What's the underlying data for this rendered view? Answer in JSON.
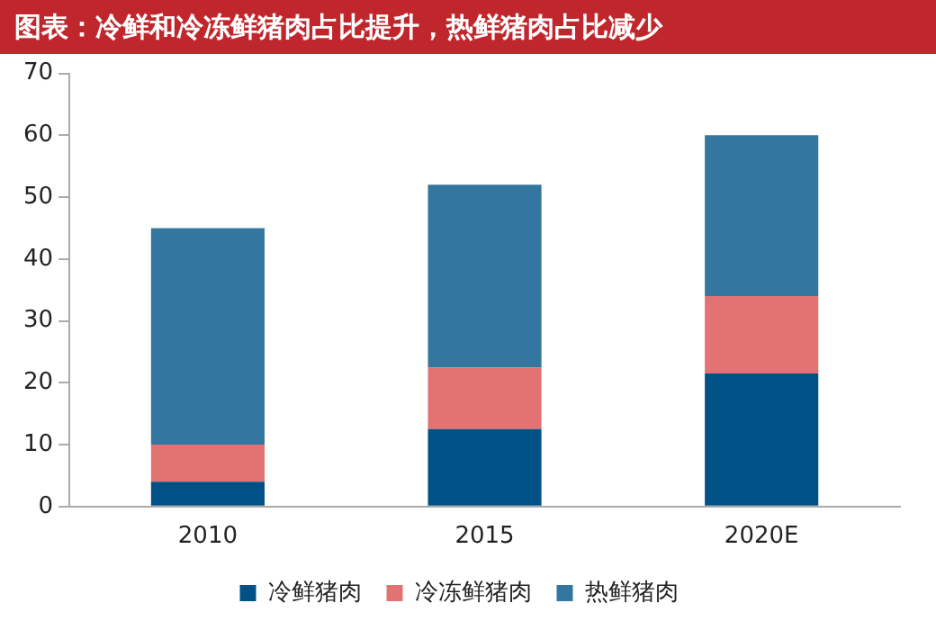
{
  "chart_data": {
    "type": "bar",
    "title": "图表：冷鲜和冷冻鲜猪肉占比提升，热鲜猪肉占比减少",
    "categories": [
      "2010",
      "2015",
      "2020E"
    ],
    "stacked": true,
    "series": [
      {
        "name": "冷鲜猪肉",
        "color": "#005286",
        "values": [
          4,
          12.5,
          21.5
        ]
      },
      {
        "name": "冷冻鲜猪肉",
        "color": "#e37272",
        "values": [
          6,
          10,
          12.5
        ]
      },
      {
        "name": "热鲜猪肉",
        "color": "#33769f",
        "values": [
          35,
          29.5,
          26
        ]
      }
    ],
    "ylim": [
      0,
      70
    ],
    "yticks": [
      0,
      10,
      20,
      30,
      40,
      50,
      60,
      70
    ],
    "grid": false,
    "legend": "bottom"
  }
}
